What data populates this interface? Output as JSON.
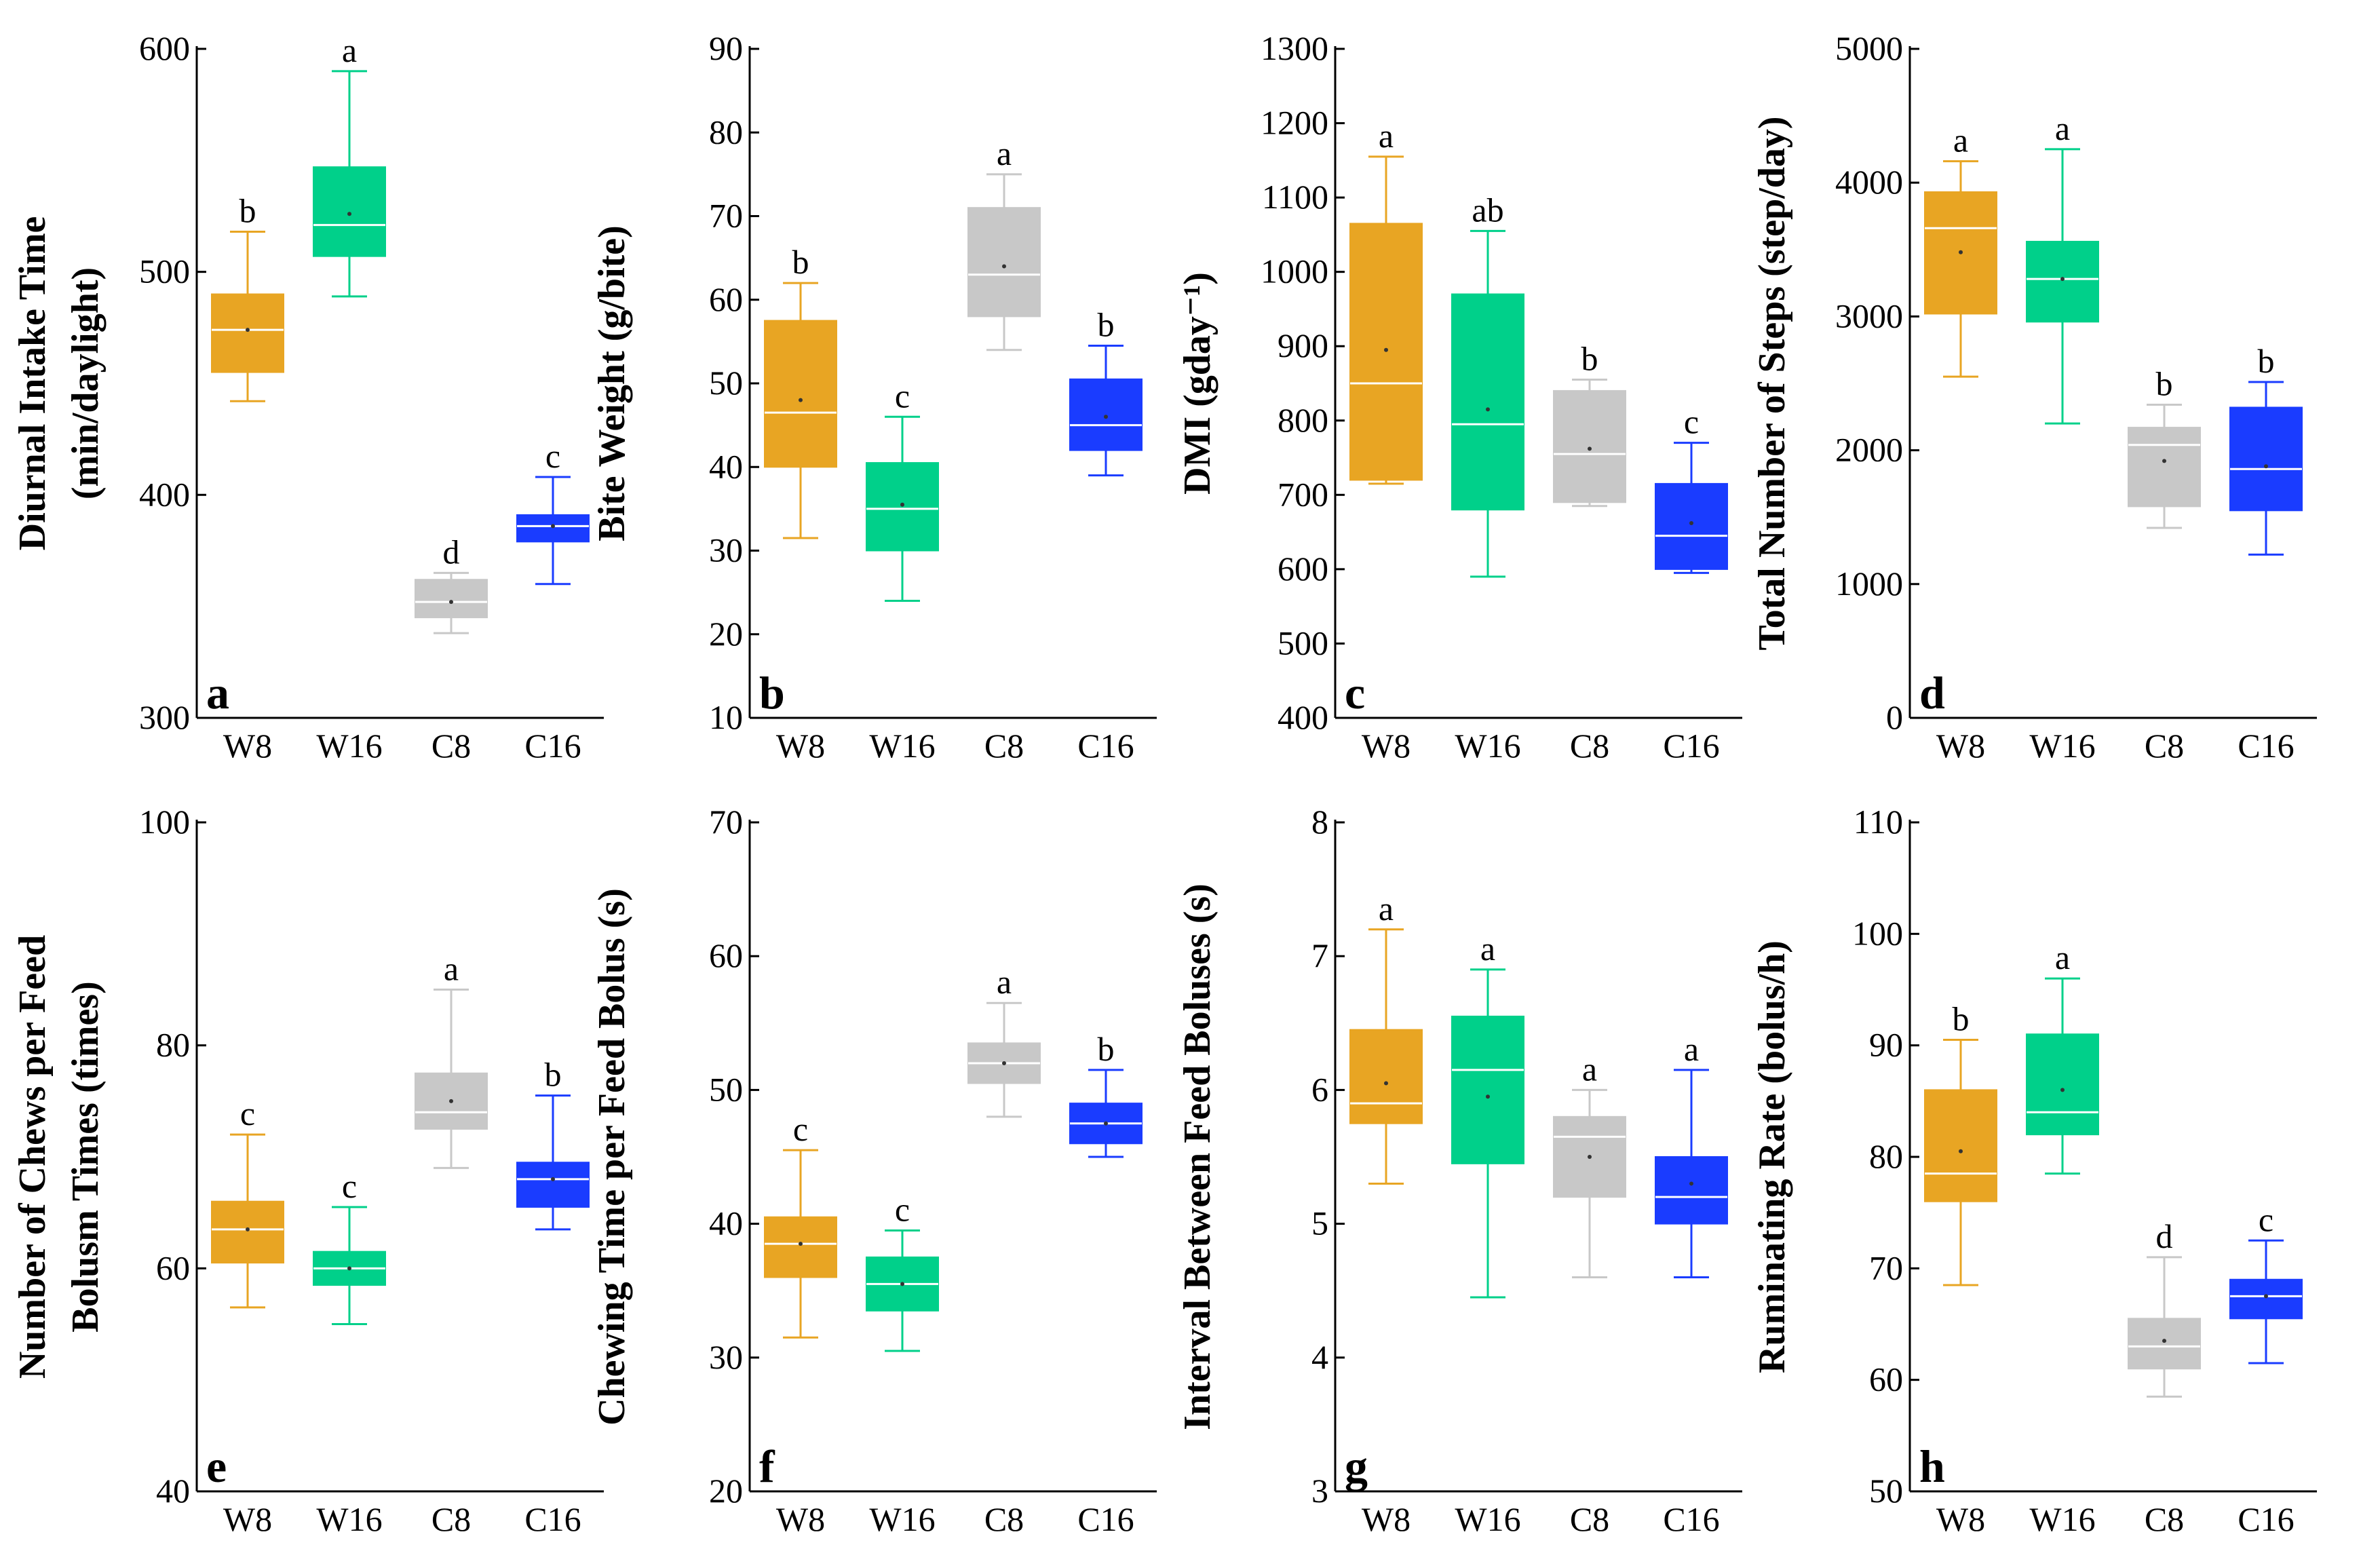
{
  "colors": {
    "W8": "#e8a523",
    "W16": "#00d08a",
    "C8": "#c8c8c8",
    "C16": "#1a3cff"
  },
  "chart_data": [
    {
      "type": "box",
      "panel": "a",
      "ylabel": [
        "Diurnal Intake Time",
        "(min/daylight)"
      ],
      "categories": [
        "W8",
        "W16",
        "C8",
        "C16"
      ],
      "ylim": [
        300,
        600
      ],
      "yticks": [
        300,
        400,
        500,
        600
      ],
      "boxes": [
        {
          "min": 442,
          "q1": 455,
          "median": 474,
          "q3": 490,
          "max": 518,
          "mean": 474,
          "letter": "b"
        },
        {
          "min": 489,
          "q1": 507,
          "median": 521,
          "q3": 547,
          "max": 590,
          "mean": 526,
          "letter": "a"
        },
        {
          "min": 338,
          "q1": 345,
          "median": 352,
          "q3": 362,
          "max": 365,
          "mean": 352,
          "letter": "d"
        },
        {
          "min": 360,
          "q1": 379,
          "median": 386,
          "q3": 391,
          "max": 408,
          "mean": 386,
          "letter": "c"
        }
      ]
    },
    {
      "type": "box",
      "panel": "b",
      "ylabel": [
        "Bite Weight (g/bite)"
      ],
      "categories": [
        "W8",
        "W16",
        "C8",
        "C16"
      ],
      "ylim": [
        10,
        90
      ],
      "yticks": [
        10,
        20,
        30,
        40,
        50,
        60,
        70,
        80,
        90
      ],
      "boxes": [
        {
          "min": 31.5,
          "q1": 40,
          "median": 46.5,
          "q3": 57.5,
          "max": 62,
          "mean": 48,
          "letter": "b"
        },
        {
          "min": 24,
          "q1": 30,
          "median": 35,
          "q3": 40.5,
          "max": 46,
          "mean": 35.5,
          "letter": "c"
        },
        {
          "min": 54,
          "q1": 58,
          "median": 63,
          "q3": 71,
          "max": 75,
          "mean": 64,
          "letter": "a"
        },
        {
          "min": 39,
          "q1": 42,
          "median": 45,
          "q3": 50.5,
          "max": 54.5,
          "mean": 46,
          "letter": "b"
        }
      ]
    },
    {
      "type": "box",
      "panel": "c",
      "ylabel": [
        "DMI (gday⁻¹)"
      ],
      "categories": [
        "W8",
        "W16",
        "C8",
        "C16"
      ],
      "ylim": [
        400,
        1300
      ],
      "yticks": [
        400,
        500,
        600,
        700,
        800,
        900,
        1000,
        1100,
        1200,
        1300
      ],
      "boxes": [
        {
          "min": 715,
          "q1": 720,
          "median": 850,
          "q3": 1065,
          "max": 1155,
          "mean": 895,
          "letter": "a"
        },
        {
          "min": 590,
          "q1": 680,
          "median": 795,
          "q3": 970,
          "max": 1055,
          "mean": 815,
          "letter": "ab"
        },
        {
          "min": 685,
          "q1": 690,
          "median": 755,
          "q3": 840,
          "max": 855,
          "mean": 762,
          "letter": "b"
        },
        {
          "min": 595,
          "q1": 600,
          "median": 645,
          "q3": 715,
          "max": 770,
          "mean": 662,
          "letter": "c"
        }
      ]
    },
    {
      "type": "box",
      "panel": "d",
      "ylabel": [
        "Total Number of Steps (step/day)"
      ],
      "categories": [
        "W8",
        "W16",
        "C8",
        "C16"
      ],
      "ylim": [
        0,
        5000
      ],
      "yticks": [
        0,
        1000,
        2000,
        3000,
        4000,
        5000
      ],
      "boxes": [
        {
          "min": 2550,
          "q1": 3020,
          "median": 3660,
          "q3": 3930,
          "max": 4160,
          "mean": 3480,
          "letter": "a"
        },
        {
          "min": 2200,
          "q1": 2960,
          "median": 3280,
          "q3": 3560,
          "max": 4250,
          "mean": 3280,
          "letter": "a"
        },
        {
          "min": 1420,
          "q1": 1580,
          "median": 2040,
          "q3": 2170,
          "max": 2340,
          "mean": 1920,
          "letter": "b"
        },
        {
          "min": 1220,
          "q1": 1550,
          "median": 1860,
          "q3": 2320,
          "max": 2510,
          "mean": 1880,
          "letter": "b"
        }
      ]
    },
    {
      "type": "box",
      "panel": "e",
      "ylabel": [
        "Number of Chews per Feed",
        "Bolusm Times (times)"
      ],
      "categories": [
        "W8",
        "W16",
        "C8",
        "C16"
      ],
      "ylim": [
        40,
        100
      ],
      "yticks": [
        40,
        60,
        80,
        100
      ],
      "boxes": [
        {
          "min": 56.5,
          "q1": 60.5,
          "median": 63.5,
          "q3": 66,
          "max": 72,
          "mean": 63.5,
          "letter": "c"
        },
        {
          "min": 55,
          "q1": 58.5,
          "median": 60,
          "q3": 61.5,
          "max": 65.5,
          "mean": 60,
          "letter": "c"
        },
        {
          "min": 69,
          "q1": 72.5,
          "median": 74,
          "q3": 77.5,
          "max": 85,
          "mean": 75,
          "letter": "a"
        },
        {
          "min": 63.5,
          "q1": 65.5,
          "median": 68,
          "q3": 69.5,
          "max": 75.5,
          "mean": 68,
          "letter": "b"
        }
      ]
    },
    {
      "type": "box",
      "panel": "f",
      "ylabel": [
        "Chewing Time per Feed Bolus (s)"
      ],
      "categories": [
        "W8",
        "W16",
        "C8",
        "C16"
      ],
      "ylim": [
        20,
        70
      ],
      "yticks": [
        20,
        30,
        40,
        50,
        60,
        70
      ],
      "boxes": [
        {
          "min": 31.5,
          "q1": 36,
          "median": 38.5,
          "q3": 40.5,
          "max": 45.5,
          "mean": 38.5,
          "letter": "c"
        },
        {
          "min": 30.5,
          "q1": 33.5,
          "median": 35.5,
          "q3": 37.5,
          "max": 39.5,
          "mean": 35.5,
          "letter": "c"
        },
        {
          "min": 48,
          "q1": 50.5,
          "median": 52,
          "q3": 53.5,
          "max": 56.5,
          "mean": 52,
          "letter": "a"
        },
        {
          "min": 45,
          "q1": 46,
          "median": 47.5,
          "q3": 49,
          "max": 51.5,
          "mean": 47.5,
          "letter": "b"
        }
      ]
    },
    {
      "type": "box",
      "panel": "g",
      "ylabel": [
        "Interval Between Feed Boluses (s)"
      ],
      "categories": [
        "W8",
        "W16",
        "C8",
        "C16"
      ],
      "ylim": [
        3,
        8
      ],
      "yticks": [
        3,
        4,
        5,
        6,
        7,
        8
      ],
      "boxes": [
        {
          "min": 5.3,
          "q1": 5.75,
          "median": 5.9,
          "q3": 6.45,
          "max": 7.2,
          "mean": 6.05,
          "letter": "a"
        },
        {
          "min": 4.45,
          "q1": 5.45,
          "median": 6.15,
          "q3": 6.55,
          "max": 6.9,
          "mean": 5.95,
          "letter": "a"
        },
        {
          "min": 4.6,
          "q1": 5.2,
          "median": 5.65,
          "q3": 5.8,
          "max": 6.0,
          "mean": 5.5,
          "letter": "a"
        },
        {
          "min": 4.6,
          "q1": 5.0,
          "median": 5.2,
          "q3": 5.5,
          "max": 6.15,
          "mean": 5.3,
          "letter": "a"
        }
      ]
    },
    {
      "type": "box",
      "panel": "h",
      "ylabel": [
        "Ruminating Rate  (bolus/h)"
      ],
      "categories": [
        "W8",
        "W16",
        "C8",
        "C16"
      ],
      "ylim": [
        50,
        110
      ],
      "yticks": [
        50,
        60,
        70,
        80,
        90,
        100,
        110
      ],
      "boxes": [
        {
          "min": 68.5,
          "q1": 76,
          "median": 78.5,
          "q3": 86,
          "max": 90.5,
          "mean": 80.5,
          "letter": "b"
        },
        {
          "min": 78.5,
          "q1": 82,
          "median": 84,
          "q3": 91,
          "max": 96,
          "mean": 86,
          "letter": "a"
        },
        {
          "min": 58.5,
          "q1": 61,
          "median": 63,
          "q3": 65.5,
          "max": 71,
          "mean": 63.5,
          "letter": "d"
        },
        {
          "min": 61.5,
          "q1": 65.5,
          "median": 67.5,
          "q3": 69,
          "max": 72.5,
          "mean": 67.5,
          "letter": "c"
        }
      ]
    }
  ]
}
